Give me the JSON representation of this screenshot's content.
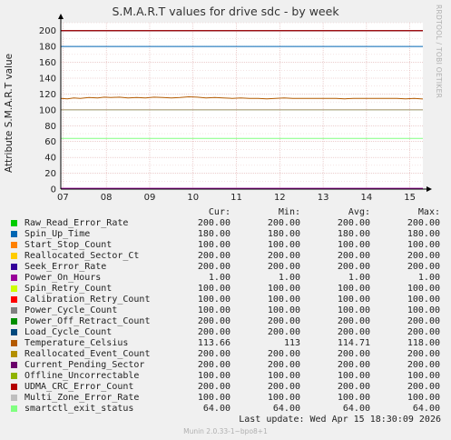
{
  "title": "S.M.A.R.T values for drive sdc - by week",
  "side_note": "RRDTOOL / TOBI OETIKER",
  "footer": "Munin 2.0.33-1~bpo8+1",
  "last_update": "Last update:  Wed Apr 15 18:30:09 2026",
  "legend_headers": {
    "cur": "Cur:",
    "min": "Min:",
    "avg": "Avg:",
    "max": "Max:"
  },
  "chart_data": {
    "type": "line",
    "title": "S.M.A.R.T values for drive sdc - by week",
    "xlabel": "",
    "ylabel": "Attribute S.M.A.R.T value",
    "x_ticks": [
      "07",
      "08",
      "09",
      "10",
      "11",
      "12",
      "13",
      "14",
      "15"
    ],
    "y_ticks": [
      0,
      20,
      40,
      60,
      80,
      100,
      120,
      140,
      160,
      180,
      200
    ],
    "ylim": [
      0,
      210
    ],
    "xlim": [
      6.95,
      15.3
    ],
    "grid": true,
    "legend_position": "bottom",
    "series": [
      {
        "name": "Raw_Read_Error_Rate",
        "color": "#00cc00",
        "cur": "200.00",
        "min": "200.00",
        "avg": "200.00",
        "max": "200.00",
        "line": 200
      },
      {
        "name": "Spin_Up_Time",
        "color": "#0066b3",
        "cur": "180.00",
        "min": "180.00",
        "avg": "180.00",
        "max": "180.00",
        "line": 180
      },
      {
        "name": "Start_Stop_Count",
        "color": "#ff8000",
        "cur": "100.00",
        "min": "100.00",
        "avg": "100.00",
        "max": "100.00",
        "line": 100
      },
      {
        "name": "Reallocated_Sector_Ct",
        "color": "#ffcc00",
        "cur": "200.00",
        "min": "200.00",
        "avg": "200.00",
        "max": "200.00",
        "line": 200
      },
      {
        "name": "Seek_Error_Rate",
        "color": "#330099",
        "cur": "200.00",
        "min": "200.00",
        "avg": "200.00",
        "max": "200.00",
        "line": 200
      },
      {
        "name": "Power_On_Hours",
        "color": "#990099",
        "cur": "1.00",
        "min": "1.00",
        "avg": "1.00",
        "max": "1.00",
        "line": 1
      },
      {
        "name": "Spin_Retry_Count",
        "color": "#ccff00",
        "cur": "100.00",
        "min": "100.00",
        "avg": "100.00",
        "max": "100.00",
        "line": 100
      },
      {
        "name": "Calibration_Retry_Count",
        "color": "#ff0000",
        "cur": "100.00",
        "min": "100.00",
        "avg": "100.00",
        "max": "100.00",
        "line": 100
      },
      {
        "name": "Power_Cycle_Count",
        "color": "#808080",
        "cur": "100.00",
        "min": "100.00",
        "avg": "100.00",
        "max": "100.00",
        "line": 100
      },
      {
        "name": "Power_Off_Retract_Count",
        "color": "#008f00",
        "cur": "200.00",
        "min": "200.00",
        "avg": "200.00",
        "max": "200.00",
        "line": 200
      },
      {
        "name": "Load_Cycle_Count",
        "color": "#00487d",
        "cur": "200.00",
        "min": "200.00",
        "avg": "200.00",
        "max": "200.00",
        "line": 200
      },
      {
        "name": "Temperature_Celsius",
        "color": "#b35a00",
        "cur": "113.66",
        "min": "113",
        "avg": "114.71",
        "max": "118.00",
        "values": [
          [
            6.95,
            114.5
          ],
          [
            7.1,
            114.0
          ],
          [
            7.25,
            115.0
          ],
          [
            7.4,
            114.5
          ],
          [
            7.6,
            115.5
          ],
          [
            7.8,
            115.0
          ],
          [
            7.95,
            116.0
          ],
          [
            8.1,
            115.5
          ],
          [
            8.3,
            116.0
          ],
          [
            8.5,
            115.0
          ],
          [
            8.7,
            115.5
          ],
          [
            8.9,
            115.0
          ],
          [
            9.1,
            116.0
          ],
          [
            9.3,
            115.5
          ],
          [
            9.5,
            115.0
          ],
          [
            9.7,
            115.5
          ],
          [
            9.9,
            116.5
          ],
          [
            10.1,
            116.0
          ],
          [
            10.3,
            115.0
          ],
          [
            10.5,
            115.5
          ],
          [
            10.7,
            115.0
          ],
          [
            10.9,
            114.5
          ],
          [
            11.1,
            115.0
          ],
          [
            11.3,
            114.5
          ],
          [
            11.5,
            114.5
          ],
          [
            11.7,
            114.0
          ],
          [
            11.9,
            114.5
          ],
          [
            12.1,
            115.0
          ],
          [
            12.3,
            114.5
          ],
          [
            12.5,
            114.5
          ],
          [
            12.7,
            114.5
          ],
          [
            12.9,
            114.5
          ],
          [
            13.1,
            114.5
          ],
          [
            13.3,
            114.5
          ],
          [
            13.5,
            114.0
          ],
          [
            13.7,
            114.5
          ],
          [
            13.9,
            114.5
          ],
          [
            14.1,
            114.5
          ],
          [
            14.3,
            114.5
          ],
          [
            14.5,
            114.5
          ],
          [
            14.7,
            114.5
          ],
          [
            14.9,
            114.0
          ],
          [
            15.1,
            114.5
          ],
          [
            15.3,
            113.7
          ]
        ]
      },
      {
        "name": "Reallocated_Event_Count",
        "color": "#b38f00",
        "cur": "200.00",
        "min": "200.00",
        "avg": "200.00",
        "max": "200.00",
        "line": 200
      },
      {
        "name": "Current_Pending_Sector",
        "color": "#6b006b",
        "cur": "200.00",
        "min": "200.00",
        "avg": "200.00",
        "max": "200.00",
        "line": 200
      },
      {
        "name": "Offline_Uncorrectable",
        "color": "#8fb300",
        "cur": "100.00",
        "min": "100.00",
        "avg": "100.00",
        "max": "100.00",
        "line": 100
      },
      {
        "name": "UDMA_CRC_Error_Count",
        "color": "#b30000",
        "cur": "200.00",
        "min": "200.00",
        "avg": "200.00",
        "max": "200.00",
        "line": 200
      },
      {
        "name": "Multi_Zone_Error_Rate",
        "color": "#bebebe",
        "cur": "100.00",
        "min": "100.00",
        "avg": "100.00",
        "max": "100.00",
        "line": 100
      },
      {
        "name": "smartctl_exit_status",
        "color": "#80ff80",
        "cur": "64.00",
        "min": "64.00",
        "avg": "64.00",
        "max": "64.00",
        "line": 64
      }
    ]
  }
}
